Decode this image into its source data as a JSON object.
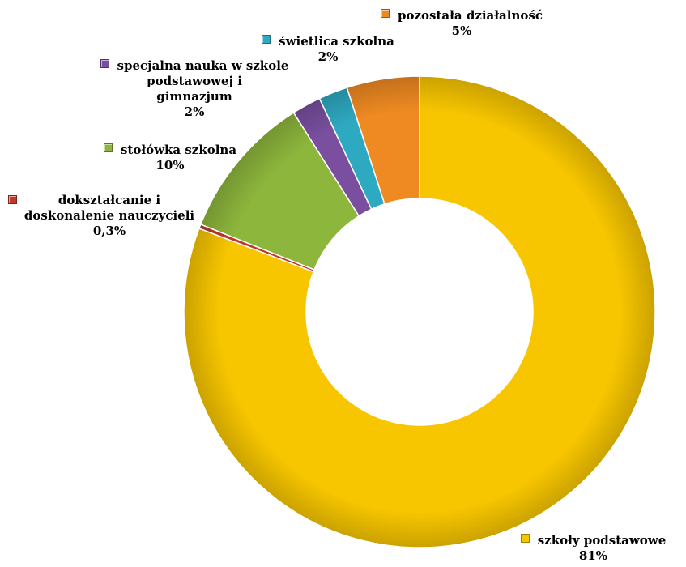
{
  "chart_data": {
    "type": "pie",
    "style": "doughnut",
    "title": "",
    "legend": "none",
    "slices": [
      {
        "label": "szkoły podstawowe",
        "value": 81,
        "display": "81%",
        "color": "#F7C600"
      },
      {
        "label": "dokształcanie i doskonalenie nauczycieli",
        "label_lines": [
          "dokształcanie i",
          "doskonalenie nauczycieli"
        ],
        "value": 0.3,
        "display": "0,3%",
        "color": "#C0392B"
      },
      {
        "label": "stołówka szkolna",
        "value": 10,
        "display": "10%",
        "color": "#8DB63C"
      },
      {
        "label": "specjalna nauka w szkole podstawowej i gimnazjum",
        "label_lines": [
          "specjalna nauka w szkole",
          "podstawowej i",
          "gimnazjum"
        ],
        "value": 2,
        "display": "2%",
        "color": "#7A4FA0"
      },
      {
        "label": "świetlica szkolna",
        "value": 2,
        "display": "2%",
        "color": "#2EA9C2"
      },
      {
        "label": "pozostała działalność",
        "value": 5,
        "display": "5%",
        "color": "#EF8A22"
      }
    ]
  }
}
